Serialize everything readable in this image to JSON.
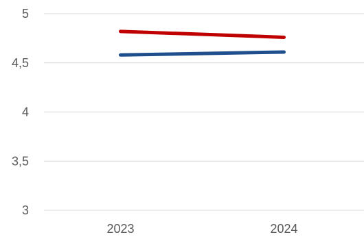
{
  "chart_data": {
    "type": "line",
    "title": "",
    "xlabel": "",
    "ylabel": "",
    "x": [
      "2023",
      "2024"
    ],
    "ylim": [
      3,
      5
    ],
    "yticks": [
      3,
      3.5,
      4,
      4.5,
      5
    ],
    "ytick_labels": [
      "3",
      "3,5",
      "4",
      "4,5",
      "5"
    ],
    "grid": true,
    "legend": "none",
    "series": [
      {
        "values": [
          4.82,
          4.76
        ],
        "color": "#C00000"
      },
      {
        "values": [
          4.58,
          4.61
        ],
        "color": "#1F4E8C"
      }
    ]
  },
  "colors": {
    "grid": "#D9D9D9",
    "tick_text": "#595959",
    "background": "#FFFFFF"
  }
}
